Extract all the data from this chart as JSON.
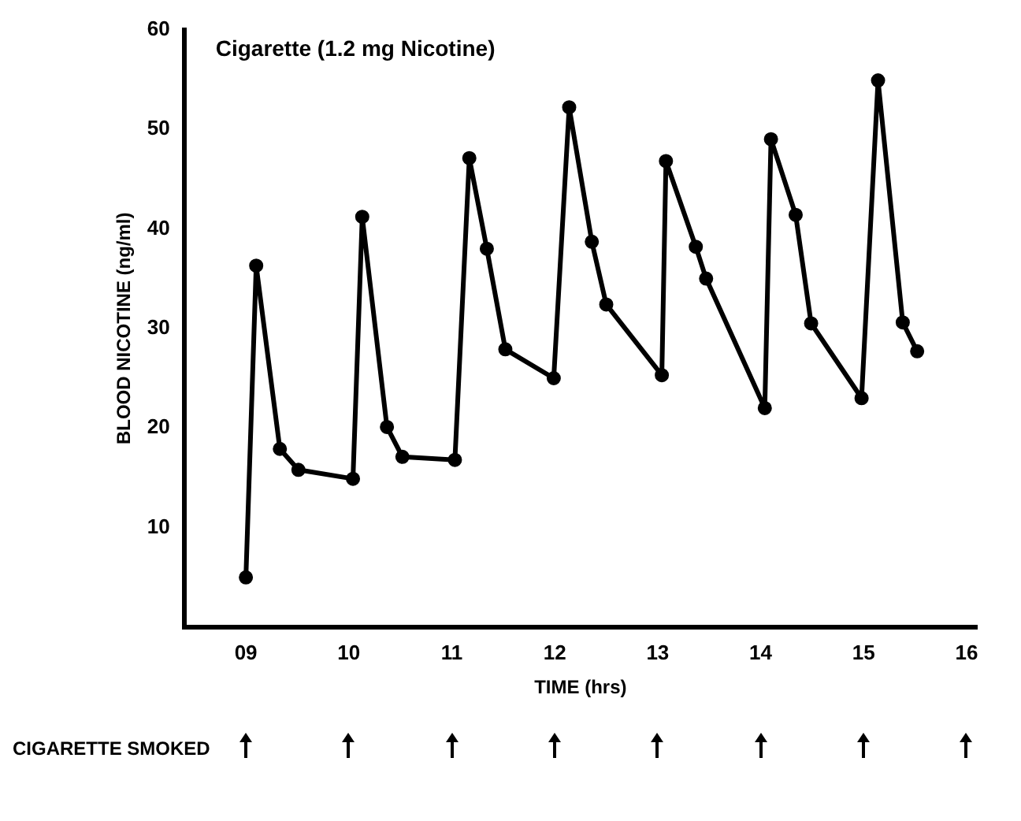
{
  "chart_data": {
    "type": "line",
    "title": "Cigarette (1.2 mg Nicotine)",
    "xlabel": "TIME (hrs)",
    "ylabel": "BLOOD NICOTINE (ng/ml)",
    "annotations": [
      "CIGARETTE SMOKED"
    ],
    "x": [
      9.0,
      9.1,
      9.33,
      9.51,
      10.04,
      10.13,
      10.37,
      10.52,
      11.03,
      11.17,
      11.34,
      11.52,
      11.99,
      12.14,
      12.36,
      12.5,
      13.04,
      13.08,
      13.37,
      13.47,
      14.04,
      14.1,
      14.34,
      14.49,
      14.98,
      15.14,
      15.38,
      15.52
    ],
    "series": [
      {
        "color": "#000000",
        "values": [
          5,
          36.3,
          17.9,
          15.8,
          14.9,
          41.2,
          20.1,
          17.1,
          16.8,
          47.1,
          38,
          27.9,
          25,
          52.2,
          38.7,
          32.4,
          25.3,
          46.8,
          38.2,
          35,
          22,
          49,
          41.4,
          30.5,
          23,
          54.9,
          30.6,
          27.7
        ]
      }
    ],
    "xlim": [
      8.4,
      16.1
    ],
    "xticks": [
      {
        "value": 9,
        "label": "09"
      },
      10,
      11,
      12,
      13,
      14,
      15,
      16
    ],
    "ylim": [
      0,
      60
    ],
    "yticks": [
      10,
      20,
      30,
      40,
      50,
      60
    ],
    "grid": false,
    "legend": false,
    "marker": "circle",
    "line_style": "solid"
  }
}
